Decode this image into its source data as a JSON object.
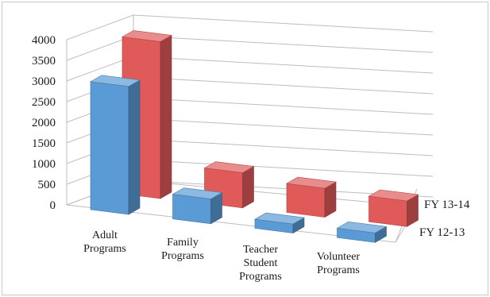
{
  "chart_data": {
    "type": "bar",
    "style": "3d-clustered-depth",
    "categories": [
      "Adult Programs",
      "Family Programs",
      "Teacher Student Programs",
      "Volunteer Programs"
    ],
    "category_lines": [
      [
        "Adult",
        "Programs"
      ],
      [
        "Family",
        "Programs"
      ],
      [
        "Teacher",
        "Student",
        "Programs"
      ],
      [
        "Volunteer",
        "Programs"
      ]
    ],
    "series": [
      {
        "name": "FY 12-13",
        "color": "#5b9bd5",
        "values": [
          3100,
          600,
          220,
          230
        ]
      },
      {
        "name": "FY 13-14",
        "color": "#e05a5a",
        "values": [
          3800,
          850,
          700,
          620
        ]
      }
    ],
    "yticks": [
      "0",
      "500",
      "1000",
      "1500",
      "2000",
      "2500",
      "3000",
      "3500",
      "4000"
    ],
    "ylim": [
      0,
      4000
    ],
    "grid": true
  }
}
